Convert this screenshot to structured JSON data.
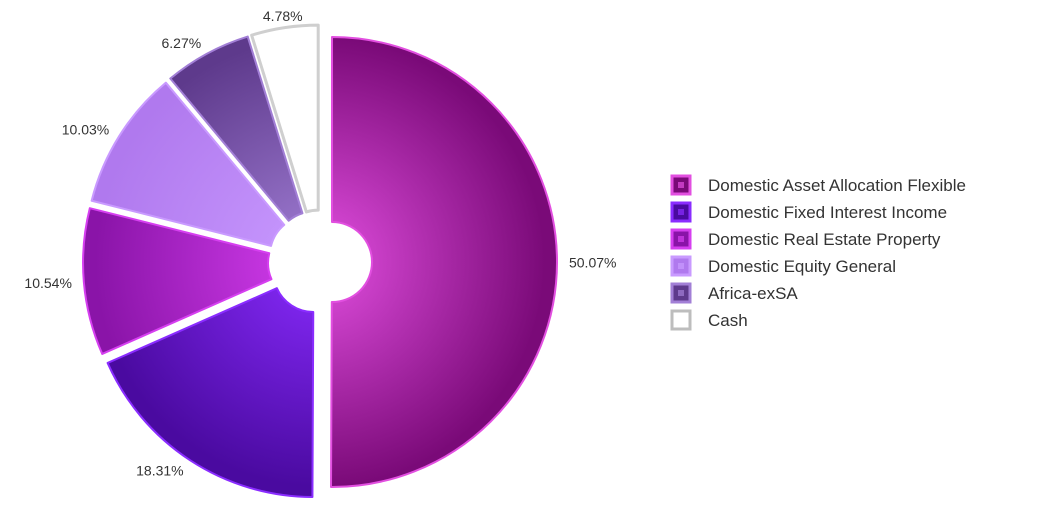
{
  "chart_data": {
    "type": "pie",
    "variant": "exploded-donut",
    "title": "",
    "legend_position": "right",
    "slices": [
      {
        "name": "Domestic Asset Allocation Flexible",
        "value": 50.07,
        "label": "50.07%",
        "color": "#7a0a78",
        "highlight": "#e24fe0"
      },
      {
        "name": "Domestic Fixed Interest Income",
        "value": 18.31,
        "label": "18.31%",
        "color": "#4a0aa0",
        "highlight": "#8a2cff"
      },
      {
        "name": "Domestic Real Estate Property",
        "value": 10.54,
        "label": "10.54%",
        "color": "#8a14a8",
        "highlight": "#d63ff0"
      },
      {
        "name": "Domestic Equity General",
        "value": 10.03,
        "label": "10.03%",
        "color": "#b079ee",
        "highlight": "#c99aff"
      },
      {
        "name": "Africa-exSA",
        "value": 6.27,
        "label": "6.27%",
        "color": "#5e3a8c",
        "highlight": "#a27fd6"
      },
      {
        "name": "Cash",
        "value": 4.78,
        "label": "4.78%",
        "color": "#ffffff",
        "highlight": "#ffffff"
      }
    ]
  }
}
